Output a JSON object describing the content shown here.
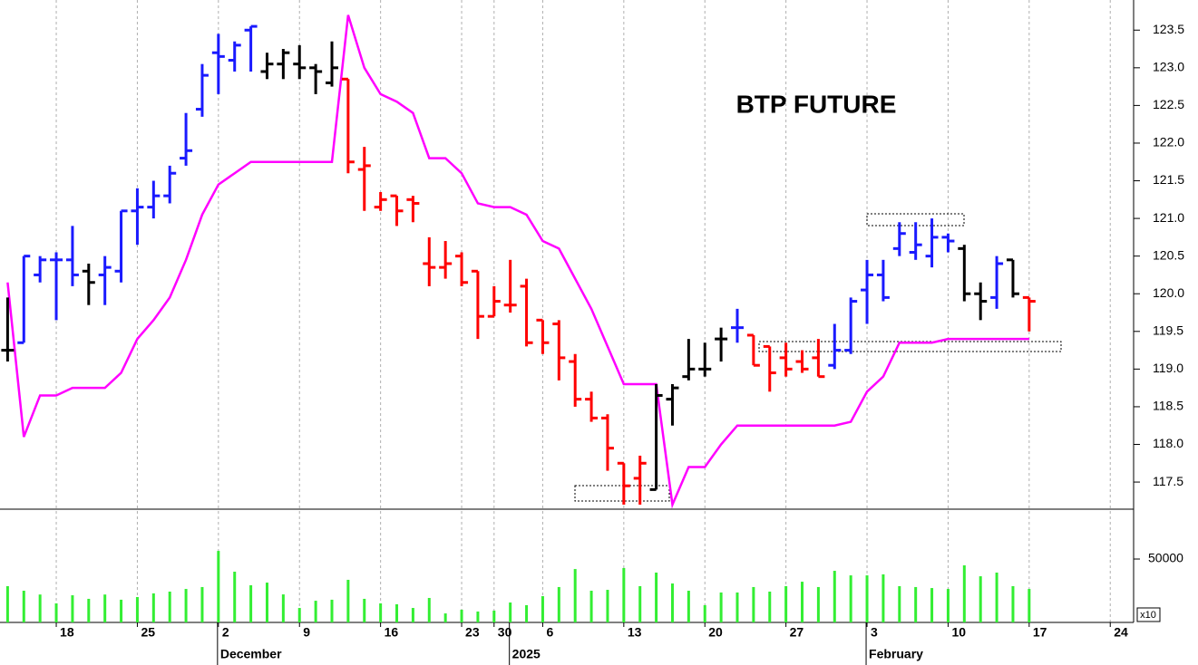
{
  "chart_data": {
    "type": "ohlc",
    "title": "BTP FUTURE",
    "categories": [
      null,
      null,
      null,
      "18",
      null,
      null,
      null,
      null,
      "25",
      null,
      null,
      null,
      null,
      "2",
      null,
      null,
      null,
      null,
      "9",
      null,
      null,
      null,
      null,
      "16",
      null,
      null,
      null,
      null,
      "23",
      null,
      "30",
      null,
      null,
      "6",
      null,
      null,
      null,
      null,
      "13",
      null,
      null,
      null,
      null,
      "20",
      null,
      null,
      null,
      null,
      "27",
      null,
      null,
      null,
      null,
      "3",
      null,
      null,
      null,
      null,
      "10",
      null,
      null,
      null,
      null,
      "17",
      null,
      null,
      null,
      null,
      "24",
      null
    ],
    "month_labels": [
      null,
      null,
      null,
      null,
      null,
      null,
      null,
      null,
      null,
      null,
      null,
      null,
      null,
      "December",
      null,
      null,
      null,
      null,
      null,
      null,
      null,
      null,
      null,
      null,
      null,
      null,
      null,
      null,
      null,
      null,
      null,
      "2025",
      null,
      null,
      null,
      null,
      null,
      null,
      null,
      null,
      null,
      null,
      null,
      null,
      null,
      null,
      null,
      null,
      null,
      null,
      null,
      null,
      null,
      "February",
      null,
      null,
      null,
      null,
      null,
      null,
      null,
      null,
      null,
      null,
      null,
      null,
      null,
      null,
      null,
      null
    ],
    "open": [
      119.25,
      119.35,
      120.25,
      120.45,
      120.45,
      120.3,
      120.25,
      120.3,
      121.1,
      121.15,
      121.3,
      121.8,
      122.45,
      123.2,
      123.1,
      123.5,
      122.95,
      123.05,
      123.05,
      123.0,
      122.8,
      122.85,
      121.65,
      121.15,
      121.3,
      121.25,
      120.4,
      120.35,
      120.5,
      120.3,
      119.7,
      119.85,
      120.1,
      119.65,
      119.6,
      119.1,
      118.6,
      118.35,
      117.75,
      117.55,
      117.4,
      118.6,
      118.9,
      119.0,
      119.4,
      119.55,
      119.45,
      119.3,
      119.15,
      119.1,
      119.15,
      119.05,
      119.25,
      120.05,
      120.25,
      120.6,
      120.55,
      120.5,
      120.75,
      120.6,
      120.0,
      119.95,
      120.45,
      119.95,
      null,
      null,
      null,
      null,
      null,
      null
    ],
    "high": [
      119.95,
      120.5,
      120.5,
      120.55,
      120.9,
      120.4,
      120.5,
      121.1,
      121.4,
      121.5,
      121.7,
      122.4,
      123.05,
      123.45,
      123.35,
      123.55,
      123.2,
      123.25,
      123.3,
      123.05,
      123.35,
      122.85,
      121.95,
      121.35,
      121.3,
      121.3,
      120.75,
      120.7,
      120.55,
      120.3,
      120.1,
      120.45,
      120.2,
      119.65,
      119.65,
      119.2,
      118.7,
      118.4,
      117.75,
      117.85,
      118.8,
      118.8,
      119.4,
      119.35,
      119.55,
      119.8,
      119.45,
      119.3,
      119.35,
      119.25,
      119.4,
      119.6,
      119.95,
      120.45,
      120.45,
      120.95,
      120.95,
      121.0,
      120.8,
      120.65,
      120.15,
      120.5,
      120.45,
      119.95,
      null,
      null,
      null,
      null,
      null,
      null
    ],
    "low": [
      119.1,
      119.35,
      120.15,
      119.65,
      120.1,
      119.85,
      119.85,
      120.15,
      120.65,
      121.0,
      121.2,
      121.7,
      122.35,
      122.65,
      122.95,
      122.95,
      122.85,
      122.85,
      122.85,
      122.65,
      122.75,
      121.6,
      121.1,
      121.1,
      120.9,
      120.95,
      120.1,
      120.2,
      120.1,
      119.4,
      119.7,
      119.75,
      119.3,
      119.2,
      118.85,
      118.5,
      118.3,
      117.65,
      117.2,
      117.2,
      117.4,
      118.25,
      118.85,
      118.9,
      119.1,
      119.35,
      119.05,
      118.7,
      118.9,
      118.95,
      118.9,
      119.0,
      119.2,
      119.6,
      119.9,
      120.5,
      120.45,
      120.35,
      120.55,
      119.9,
      119.65,
      119.8,
      119.95,
      119.5,
      null,
      null,
      null,
      null,
      null,
      null
    ],
    "close": [
      119.25,
      120.5,
      120.45,
      120.45,
      120.25,
      120.15,
      120.35,
      121.1,
      121.15,
      121.3,
      121.6,
      121.9,
      122.9,
      123.15,
      123.3,
      123.55,
      123.05,
      123.2,
      123.0,
      122.95,
      123.0,
      121.75,
      121.7,
      121.25,
      121.1,
      121.2,
      120.35,
      120.4,
      120.15,
      119.7,
      119.9,
      119.85,
      119.35,
      119.35,
      119.15,
      118.6,
      118.35,
      117.95,
      117.45,
      117.75,
      118.65,
      118.75,
      119.0,
      119.0,
      119.4,
      119.55,
      119.05,
      118.95,
      119.0,
      119.0,
      118.9,
      119.25,
      119.9,
      120.25,
      119.95,
      120.8,
      120.65,
      120.75,
      120.7,
      120.0,
      119.9,
      120.4,
      120.0,
      119.9,
      null,
      null,
      null,
      null,
      null,
      null
    ],
    "bar_colors": [
      "#000000",
      "#1a1aff",
      "#1a1aff",
      "#1a1aff",
      "#1a1aff",
      "#000000",
      "#1a1aff",
      "#1a1aff",
      "#1a1aff",
      "#1a1aff",
      "#1a1aff",
      "#1a1aff",
      "#1a1aff",
      "#1a1aff",
      "#1a1aff",
      "#1a1aff",
      "#000000",
      "#000000",
      "#000000",
      "#000000",
      "#000000",
      "#ff0000",
      "#ff0000",
      "#ff0000",
      "#ff0000",
      "#ff0000",
      "#ff0000",
      "#ff0000",
      "#ff0000",
      "#ff0000",
      "#ff0000",
      "#ff0000",
      "#ff0000",
      "#ff0000",
      "#ff0000",
      "#ff0000",
      "#ff0000",
      "#ff0000",
      "#ff0000",
      "#ff0000",
      "#000000",
      "#000000",
      "#000000",
      "#000000",
      "#000000",
      "#1a1aff",
      "#ff0000",
      "#ff0000",
      "#ff0000",
      "#ff0000",
      "#ff0000",
      "#1a1aff",
      "#1a1aff",
      "#1a1aff",
      "#1a1aff",
      "#1a1aff",
      "#1a1aff",
      "#1a1aff",
      "#1a1aff",
      "#000000",
      "#000000",
      "#1a1aff",
      "#000000",
      "#ff0000",
      null,
      null,
      null,
      null,
      null,
      null
    ],
    "stop_line": {
      "color": "#ff00ff",
      "values": [
        120.15,
        118.1,
        118.65,
        118.65,
        118.75,
        118.75,
        118.75,
        118.95,
        119.4,
        119.65,
        119.95,
        120.45,
        121.05,
        121.45,
        121.6,
        121.75,
        121.75,
        121.75,
        121.75,
        121.75,
        121.75,
        123.7,
        123.0,
        122.65,
        122.55,
        122.4,
        121.8,
        121.8,
        121.6,
        121.2,
        121.15,
        121.15,
        121.05,
        120.7,
        120.6,
        120.2,
        119.8,
        119.3,
        118.8,
        118.8,
        118.8,
        117.2,
        117.7,
        117.7,
        118.0,
        118.25,
        118.25,
        118.25,
        118.25,
        118.25,
        118.25,
        118.25,
        118.3,
        118.7,
        118.9,
        119.35,
        119.35,
        119.35,
        119.4,
        119.4,
        119.4,
        119.4,
        119.4,
        119.4,
        null,
        null,
        null,
        null,
        null,
        null
      ]
    },
    "ylim": [
      117.14,
      123.9
    ],
    "yticks": [
      {
        "value": 117.5,
        "label": "117.5"
      },
      {
        "value": 118,
        "label": "118.0"
      },
      {
        "value": 118.5,
        "label": "118.5"
      },
      {
        "value": 119,
        "label": "119.0"
      },
      {
        "value": 119.5,
        "label": "119.5"
      },
      {
        "value": 120,
        "label": "120.0"
      },
      {
        "value": 120.5,
        "label": "120.5"
      },
      {
        "value": 121,
        "label": "121.0"
      },
      {
        "value": 121.5,
        "label": "121.5"
      },
      {
        "value": 122,
        "label": "122.0"
      },
      {
        "value": 122.5,
        "label": "122.5"
      },
      {
        "value": 123,
        "label": "123.0"
      },
      {
        "value": 123.5,
        "label": "123.5"
      }
    ],
    "volume": {
      "color": "#33ee33",
      "multiplier_label": "x10",
      "ylim": [
        0,
        88600
      ],
      "yticks": [
        50000
      ],
      "values": [
        28600,
        25000,
        22000,
        15000,
        21400,
        18600,
        22000,
        17900,
        20000,
        22900,
        24300,
        26400,
        27900,
        56400,
        40000,
        29300,
        31400,
        22100,
        11400,
        17100,
        17900,
        33600,
        18600,
        15000,
        14300,
        11400,
        19300,
        7100,
        10000,
        8600,
        9300,
        15700,
        13600,
        20700,
        27900,
        42100,
        25000,
        25700,
        42900,
        28600,
        39300,
        30700,
        25000,
        13600,
        23600,
        23600,
        27900,
        24300,
        28600,
        32100,
        27900,
        40700,
        37100,
        37100,
        37900,
        28600,
        27900,
        27100,
        26400,
        45000,
        36400,
        39300,
        28600,
        26400,
        null,
        null,
        null,
        null,
        null,
        null
      ]
    }
  }
}
